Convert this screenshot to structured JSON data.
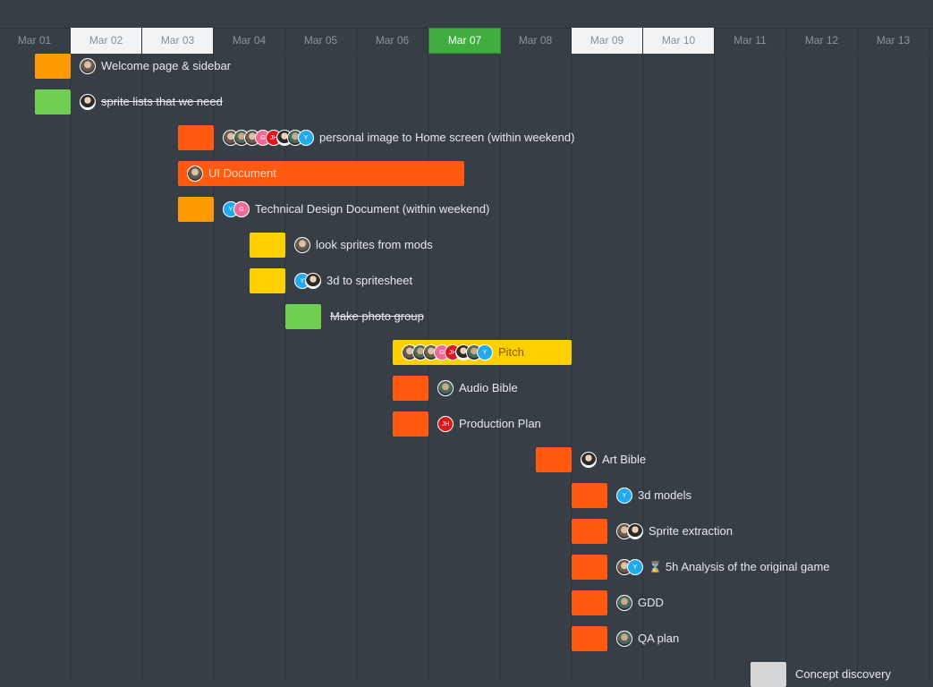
{
  "timeline": {
    "days": [
      {
        "label": "Mar 01",
        "style": "dark"
      },
      {
        "label": "Mar 02",
        "style": "light"
      },
      {
        "label": "Mar 03",
        "style": "light"
      },
      {
        "label": "Mar 04",
        "style": "dark"
      },
      {
        "label": "Mar 05",
        "style": "dark"
      },
      {
        "label": "Mar 06",
        "style": "dark"
      },
      {
        "label": "Mar 07",
        "style": "today"
      },
      {
        "label": "Mar 08",
        "style": "dark"
      },
      {
        "label": "Mar 09",
        "style": "light"
      },
      {
        "label": "Mar 10",
        "style": "light"
      },
      {
        "label": "Mar 11",
        "style": "dark"
      },
      {
        "label": "Mar 12",
        "style": "dark"
      },
      {
        "label": "Mar 13",
        "style": "dark"
      }
    ]
  },
  "colors": {
    "orange": "#ff5a0f",
    "amber": "#ff9a00",
    "yellow": "#ffd000",
    "green": "#6fcf50",
    "grey": "#d4d6d8",
    "today": "#3fae3f"
  },
  "tasks": [
    {
      "name": "Welcome page & sidebar",
      "start": "Mar 01",
      "end": "Mar 01",
      "color": "amber",
      "assignees": [
        "photo"
      ],
      "done": false
    },
    {
      "name": "sprite lists that we need",
      "start": "Mar 01",
      "end": "Mar 01",
      "color": "green",
      "assignees": [
        "photo2"
      ],
      "done": true
    },
    {
      "name": "personal image to Home screen (within weekend)",
      "start": "Mar 03",
      "end": "Mar 03",
      "color": "orange",
      "assignees": [
        "photo",
        "photo3",
        "photo",
        "G",
        "JH",
        "photo2",
        "photo3",
        "Y"
      ],
      "done": false
    },
    {
      "name": "UI Document",
      "start": "Mar 03",
      "end": "Mar 06",
      "color": "orange",
      "assignees": [
        "photo"
      ],
      "done": false,
      "label_inside": true
    },
    {
      "name": "Technical Design Document (within weekend)",
      "start": "Mar 03",
      "end": "Mar 03",
      "color": "amber",
      "assignees": [
        "Y",
        "G"
      ],
      "done": false
    },
    {
      "name": "look sprites from mods",
      "start": "Mar 04",
      "end": "Mar 04",
      "color": "yellow",
      "assignees": [
        "photo"
      ],
      "done": false
    },
    {
      "name": "3d to spritesheet",
      "start": "Mar 04",
      "end": "Mar 04",
      "color": "yellow",
      "assignees": [
        "Y",
        "photo2"
      ],
      "done": false
    },
    {
      "name": "Make photo group",
      "start": "Mar 04.5",
      "end": "Mar 04.5",
      "color": "green",
      "assignees": [],
      "done": true
    },
    {
      "name": "Pitch",
      "start": "Mar 06",
      "end": "Mar 08",
      "color": "yellow",
      "assignees": [
        "photo",
        "photo3",
        "photo",
        "G",
        "JH",
        "photo2",
        "photo3",
        "Y"
      ],
      "done": false,
      "label_inside": true
    },
    {
      "name": "Audio Bible",
      "start": "Mar 06",
      "end": "Mar 06",
      "color": "orange",
      "assignees": [
        "photo3"
      ],
      "done": false
    },
    {
      "name": "Production Plan",
      "start": "Mar 06",
      "end": "Mar 06",
      "color": "orange",
      "assignees": [
        "JH"
      ],
      "done": false
    },
    {
      "name": "Art Bible",
      "start": "Mar 08",
      "end": "Mar 08",
      "color": "orange",
      "assignees": [
        "photo2"
      ],
      "done": false
    },
    {
      "name": "3d models",
      "start": "Mar 08.5",
      "end": "Mar 08.5",
      "color": "orange",
      "assignees": [
        "Y"
      ],
      "done": false
    },
    {
      "name": "Sprite extraction",
      "start": "Mar 08.5",
      "end": "Mar 08.5",
      "color": "orange",
      "assignees": [
        "photo",
        "photo2"
      ],
      "done": false
    },
    {
      "name": "Analysis of the original game",
      "start": "Mar 08.5",
      "end": "Mar 08.5",
      "color": "orange",
      "assignees": [
        "photo",
        "Y"
      ],
      "done": false,
      "time": "5h"
    },
    {
      "name": "GDD",
      "start": "Mar 08.5",
      "end": "Mar 08.5",
      "color": "orange",
      "assignees": [
        "photo3"
      ],
      "done": false
    },
    {
      "name": "QA plan",
      "start": "Mar 08.5",
      "end": "Mar 08.5",
      "color": "orange",
      "assignees": [
        "photo3"
      ],
      "done": false
    },
    {
      "name": "Concept discovery",
      "start": "Mar 11",
      "end": "Mar 11",
      "color": "grey",
      "assignees": [],
      "done": false
    }
  ]
}
